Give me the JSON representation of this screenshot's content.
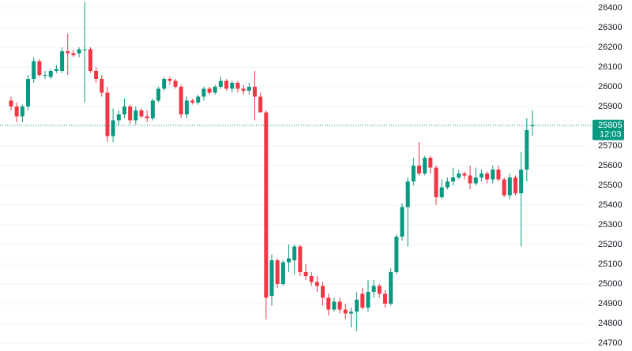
{
  "chart_data": {
    "type": "candlestick",
    "open": [
      25930,
      25900,
      25850,
      25900,
      26040,
      26130,
      26060,
      26050,
      26080,
      26080,
      26180,
      26170,
      26170,
      26190,
      26190,
      26080,
      26040,
      25970,
      25750,
      25830,
      25860,
      25900,
      25830,
      25880,
      25850,
      25840,
      25930,
      25990,
      26040,
      26030,
      26000,
      25860,
      25930,
      25920,
      25950,
      25990,
      25970,
      26000,
      26030,
      25990,
      26020,
      25990,
      25980,
      26000,
      25950,
      25870,
      24940,
      25120,
      25000,
      25110,
      25120,
      25190,
      25060,
      25040,
      25010,
      24990,
      24930,
      24870,
      24910,
      24870,
      24850,
      24860,
      24950,
      24880,
      24960,
      24990,
      24950,
      24900,
      25060,
      25240,
      25390,
      25520,
      25600,
      25560,
      25640,
      25590,
      25440,
      25490,
      25520,
      25540,
      25560,
      25550,
      25510,
      25540,
      25560,
      25530,
      25580,
      25530,
      25450,
      25540,
      25460,
      25580,
      25800
    ],
    "high": [
      25950,
      25920,
      25910,
      26060,
      26150,
      26140,
      26080,
      26090,
      26110,
      26200,
      26270,
      26190,
      26200,
      26430,
      26200,
      26100,
      26060,
      26000,
      25890,
      25880,
      25940,
      25910,
      25900,
      25890,
      25880,
      25940,
      26000,
      26050,
      26050,
      26040,
      26010,
      25950,
      25940,
      25960,
      26000,
      26000,
      26010,
      26050,
      26040,
      26030,
      26030,
      26010,
      26020,
      26080,
      25970,
      25880,
      25150,
      25130,
      25120,
      25200,
      25200,
      25200,
      25100,
      25060,
      25040,
      25010,
      24950,
      24930,
      24930,
      24900,
      24880,
      24960,
      24980,
      25020,
      25020,
      25000,
      24970,
      25080,
      25250,
      25410,
      25540,
      25640,
      25720,
      25650,
      25650,
      25600,
      25530,
      25540,
      25590,
      25580,
      25570,
      25600,
      25590,
      25580,
      25570,
      25600,
      25600,
      25540,
      25560,
      25550,
      25670,
      25840,
      25880
    ],
    "low": [
      25880,
      25820,
      25820,
      25880,
      26020,
      26050,
      26040,
      26040,
      26070,
      26070,
      26060,
      26150,
      26150,
      25920,
      26070,
      26020,
      25950,
      25720,
      25720,
      25800,
      25840,
      25810,
      25810,
      25840,
      25820,
      25830,
      25920,
      25980,
      26010,
      25990,
      25840,
      25840,
      25910,
      25910,
      25930,
      25960,
      25960,
      25990,
      25980,
      25970,
      25970,
      25960,
      25960,
      25830,
      25870,
      24820,
      24890,
      24980,
      24990,
      25060,
      25050,
      25040,
      25020,
      24990,
      24960,
      24890,
      24840,
      24860,
      24850,
      24820,
      24780,
      24760,
      24870,
      24860,
      24930,
      24930,
      24880,
      24890,
      25050,
      25220,
      25190,
      25500,
      25550,
      25550,
      25560,
      25400,
      25430,
      25480,
      25500,
      25530,
      25530,
      25480,
      25500,
      25520,
      25510,
      25510,
      25520,
      25440,
      25430,
      25450,
      25190,
      25520,
      25750
    ],
    "close": [
      25900,
      25850,
      25900,
      26040,
      26130,
      26060,
      26060,
      26080,
      26090,
      26180,
      26170,
      26160,
      26190,
      26190,
      26080,
      26040,
      25970,
      25750,
      25830,
      25860,
      25900,
      25830,
      25880,
      25850,
      25840,
      25930,
      25990,
      26040,
      26030,
      26000,
      25860,
      25930,
      25920,
      25950,
      25990,
      25970,
      26000,
      26030,
      25990,
      26020,
      25990,
      25980,
      26000,
      25950,
      25870,
      24930,
      25120,
      25000,
      25110,
      25130,
      25190,
      25060,
      25040,
      25010,
      24990,
      24930,
      24870,
      24910,
      24870,
      24850,
      24860,
      24920,
      24880,
      24960,
      24990,
      24950,
      24900,
      25060,
      25240,
      25390,
      25520,
      25600,
      25560,
      25640,
      25590,
      25440,
      25490,
      25520,
      25540,
      25560,
      25550,
      25510,
      25540,
      25560,
      25530,
      25580,
      25530,
      25450,
      25540,
      25460,
      25580,
      25780,
      25805
    ],
    "up_color": "#089981",
    "down_color": "#f23645",
    "ylim": [
      24660,
      26440
    ],
    "yticks": [
      24700,
      24800,
      24900,
      25000,
      25100,
      25200,
      25300,
      25400,
      25500,
      25600,
      25700,
      25800,
      25900,
      26000,
      26100,
      26200,
      26300,
      26400
    ],
    "grid": true,
    "last_price": 25805,
    "countdown": "12:03"
  }
}
